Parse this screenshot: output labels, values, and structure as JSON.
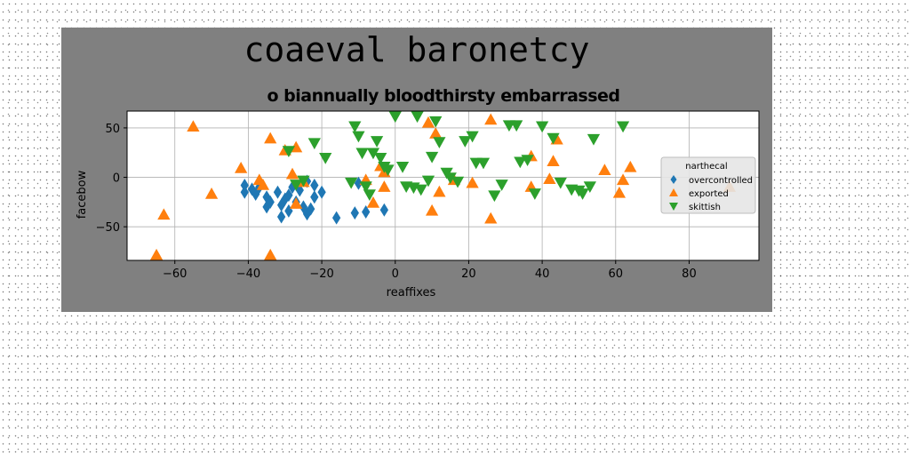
{
  "chart_data": {
    "type": "scatter",
    "title": "coaeval baronetcy",
    "subtitle": "o biannually bloodthirsty embarrassed",
    "xlabel": "reaffixes",
    "ylabel": "facebow",
    "xlim": [
      -73,
      99
    ],
    "ylim": [
      -84,
      67
    ],
    "xticks": [
      -60,
      -40,
      -20,
      0,
      20,
      40,
      60,
      80
    ],
    "yticks": [
      -50,
      0,
      50
    ],
    "grid": true,
    "legend": {
      "title": "narthecal",
      "placement": "center-right"
    },
    "series": [
      {
        "name": "overcontrolled",
        "marker": "diamond",
        "color": "#1f77b4",
        "points": [
          [
            -41,
            -15
          ],
          [
            -41,
            -8
          ],
          [
            -39,
            -12
          ],
          [
            -38,
            -17
          ],
          [
            -37,
            -10
          ],
          [
            -35,
            -20
          ],
          [
            -35,
            -30
          ],
          [
            -34,
            -25
          ],
          [
            -32,
            -15
          ],
          [
            -31,
            -28
          ],
          [
            -31,
            -40
          ],
          [
            -30,
            -22
          ],
          [
            -29,
            -34
          ],
          [
            -29,
            -18
          ],
          [
            -28,
            -10
          ],
          [
            -27,
            -25
          ],
          [
            -26,
            -13
          ],
          [
            -25,
            -30
          ],
          [
            -24,
            -37
          ],
          [
            -24,
            -4
          ],
          [
            -23,
            -32
          ],
          [
            -22,
            -20
          ],
          [
            -22,
            -8
          ],
          [
            -20,
            -15
          ],
          [
            -16,
            -41
          ],
          [
            -11,
            -36
          ],
          [
            -10,
            -6
          ],
          [
            -8,
            -35
          ],
          [
            -3,
            -33
          ]
        ]
      },
      {
        "name": "exported",
        "marker": "triangle-up",
        "color": "#ff7f0e",
        "points": [
          [
            -65,
            -79
          ],
          [
            -63,
            -38
          ],
          [
            -55,
            51
          ],
          [
            -50,
            -17
          ],
          [
            -42,
            9
          ],
          [
            -37,
            -3
          ],
          [
            -36,
            -8
          ],
          [
            -34,
            39
          ],
          [
            -34,
            -79
          ],
          [
            -30,
            27
          ],
          [
            -28,
            3
          ],
          [
            -27,
            30
          ],
          [
            -27,
            -27
          ],
          [
            -25,
            -5
          ],
          [
            -8,
            -3
          ],
          [
            -6,
            -26
          ],
          [
            -4,
            11
          ],
          [
            -3,
            5
          ],
          [
            -3,
            -10
          ],
          [
            9,
            55
          ],
          [
            10,
            -34
          ],
          [
            11,
            44
          ],
          [
            12,
            -15
          ],
          [
            16,
            -3
          ],
          [
            21,
            -6
          ],
          [
            26,
            -42
          ],
          [
            26,
            58
          ],
          [
            37,
            -10
          ],
          [
            37,
            21
          ],
          [
            42,
            -2
          ],
          [
            43,
            16
          ],
          [
            44,
            38
          ],
          [
            57,
            7
          ],
          [
            61,
            -16
          ],
          [
            62,
            -3
          ],
          [
            64,
            10
          ],
          [
            91,
            -10
          ]
        ]
      },
      {
        "name": "skittish",
        "marker": "triangle-down",
        "color": "#2ca02c",
        "points": [
          [
            -29,
            27
          ],
          [
            -27,
            -7
          ],
          [
            -25,
            -3
          ],
          [
            -22,
            35
          ],
          [
            -19,
            20
          ],
          [
            -12,
            -5
          ],
          [
            -11,
            52
          ],
          [
            -10,
            42
          ],
          [
            -9,
            25
          ],
          [
            -8,
            -9
          ],
          [
            -7,
            -17
          ],
          [
            -6,
            25
          ],
          [
            -5,
            37
          ],
          [
            -4,
            20
          ],
          [
            -3,
            11
          ],
          [
            -2,
            8
          ],
          [
            0,
            62
          ],
          [
            2,
            11
          ],
          [
            3,
            -9
          ],
          [
            5,
            -10
          ],
          [
            6,
            62
          ],
          [
            7,
            -12
          ],
          [
            9,
            -3
          ],
          [
            10,
            21
          ],
          [
            11,
            57
          ],
          [
            12,
            36
          ],
          [
            14,
            5
          ],
          [
            15,
            0
          ],
          [
            17,
            -4
          ],
          [
            19,
            37
          ],
          [
            21,
            42
          ],
          [
            22,
            15
          ],
          [
            24,
            15
          ],
          [
            27,
            -18
          ],
          [
            29,
            -7
          ],
          [
            31,
            53
          ],
          [
            33,
            53
          ],
          [
            34,
            16
          ],
          [
            36,
            18
          ],
          [
            38,
            -16
          ],
          [
            40,
            52
          ],
          [
            43,
            40
          ],
          [
            45,
            -5
          ],
          [
            48,
            -12
          ],
          [
            50,
            -13
          ],
          [
            51,
            -16
          ],
          [
            53,
            -9
          ],
          [
            54,
            39
          ],
          [
            62,
            52
          ]
        ]
      }
    ]
  }
}
